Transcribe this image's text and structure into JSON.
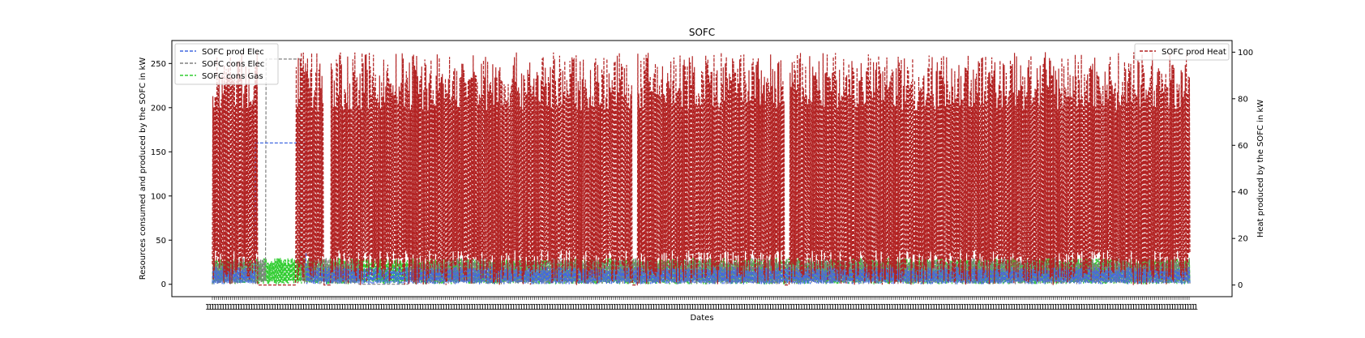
{
  "chart_data": {
    "type": "line",
    "title": "SOFC",
    "xlabel": "Dates",
    "ylabel_left": "Resources consumed and produced by the SOFC in kW",
    "ylabel_right": "Heat produced by the SOFC in kW",
    "ylim_left": [
      -14,
      276
    ],
    "yticks_left": [
      0,
      50,
      100,
      150,
      200,
      250
    ],
    "ylim_right": [
      -5,
      105
    ],
    "yticks_right": [
      0,
      20,
      40,
      60,
      80,
      100
    ],
    "grid": false,
    "legend_left": "top-left",
    "legend_right": "top-right",
    "x_tick_count": 8760,
    "series": [
      {
        "name": "SOFC prod Elec",
        "axis": "left",
        "color": "#4169e1",
        "style": "dashed",
        "typical_low": 0,
        "typical_high": 20,
        "plateaus": [
          {
            "x_from": 0.044,
            "x_to": 0.095,
            "value": 160
          }
        ]
      },
      {
        "name": "SOFC cons Elec",
        "axis": "left",
        "color": "#808080",
        "style": "dashed",
        "typical_low": 0,
        "typical_high": 30,
        "plateaus": [
          {
            "x_from": 0.055,
            "x_to": 0.09,
            "value": 255
          }
        ]
      },
      {
        "name": "SOFC cons Gas",
        "axis": "left",
        "color": "#32cd32",
        "style": "dashed",
        "typical_low": 0,
        "typical_high": 30,
        "plateaus": []
      },
      {
        "name": "SOFC prod Heat",
        "axis": "right",
        "color": "#b22222",
        "style": "dashed",
        "typical_low": 0,
        "typical_high": 100,
        "plateaus": []
      }
    ]
  },
  "x_tick_glyph": "1",
  "legend_left_labels": [
    "SOFC prod Elec",
    "SOFC cons Elec",
    "SOFC cons Gas"
  ],
  "legend_right_labels": [
    "SOFC prod Heat"
  ]
}
